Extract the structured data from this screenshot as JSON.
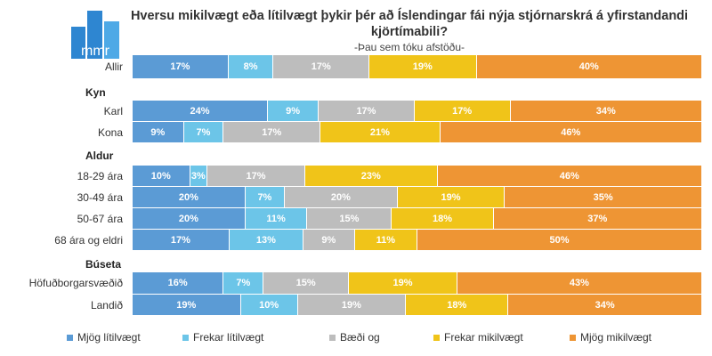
{
  "logo_text": "mmr",
  "chart_data": {
    "type": "bar",
    "orientation": "horizontal",
    "stacked": true,
    "title": "Hversu mikilvægt eða lítilvægt þykir þér að Íslendingar fái nýja stjórnarskrá á yfirstandandi kjörtímabili?",
    "subtitle": "-Þau sem tóku afstöðu-",
    "legend_position": "bottom",
    "series": [
      {
        "name": "Mjög lítilvægt",
        "color": "#5B9BD5"
      },
      {
        "name": "Frekar lítilvægt",
        "color": "#6CC5E8"
      },
      {
        "name": "Bæði og",
        "color": "#BDBDBD"
      },
      {
        "name": "Frekar mikilvægt",
        "color": "#F0C419"
      },
      {
        "name": "Mjög mikilvægt",
        "color": "#EE9534"
      }
    ],
    "rows": [
      {
        "type": "row",
        "label": "Allir",
        "values": [
          17,
          8,
          17,
          19,
          40
        ]
      },
      {
        "type": "group",
        "label": "Kyn"
      },
      {
        "type": "row",
        "label": "Karl",
        "values": [
          24,
          9,
          17,
          17,
          34
        ]
      },
      {
        "type": "row",
        "label": "Kona",
        "values": [
          9,
          7,
          17,
          21,
          46
        ]
      },
      {
        "type": "group",
        "label": "Aldur"
      },
      {
        "type": "row",
        "label": "18-29 ára",
        "values": [
          10,
          3,
          17,
          23,
          46
        ]
      },
      {
        "type": "row",
        "label": "30-49 ára",
        "values": [
          20,
          7,
          20,
          19,
          35
        ]
      },
      {
        "type": "row",
        "label": "50-67 ára",
        "values": [
          20,
          11,
          15,
          18,
          37
        ]
      },
      {
        "type": "row",
        "label": "68 ára og eldri",
        "values": [
          17,
          13,
          9,
          11,
          50
        ]
      },
      {
        "type": "group",
        "label": "Búseta"
      },
      {
        "type": "row",
        "label": "Höfuðborgarsvæðið",
        "values": [
          16,
          7,
          15,
          19,
          43
        ]
      },
      {
        "type": "row",
        "label": "Landið",
        "values": [
          19,
          10,
          19,
          18,
          34
        ]
      }
    ]
  }
}
